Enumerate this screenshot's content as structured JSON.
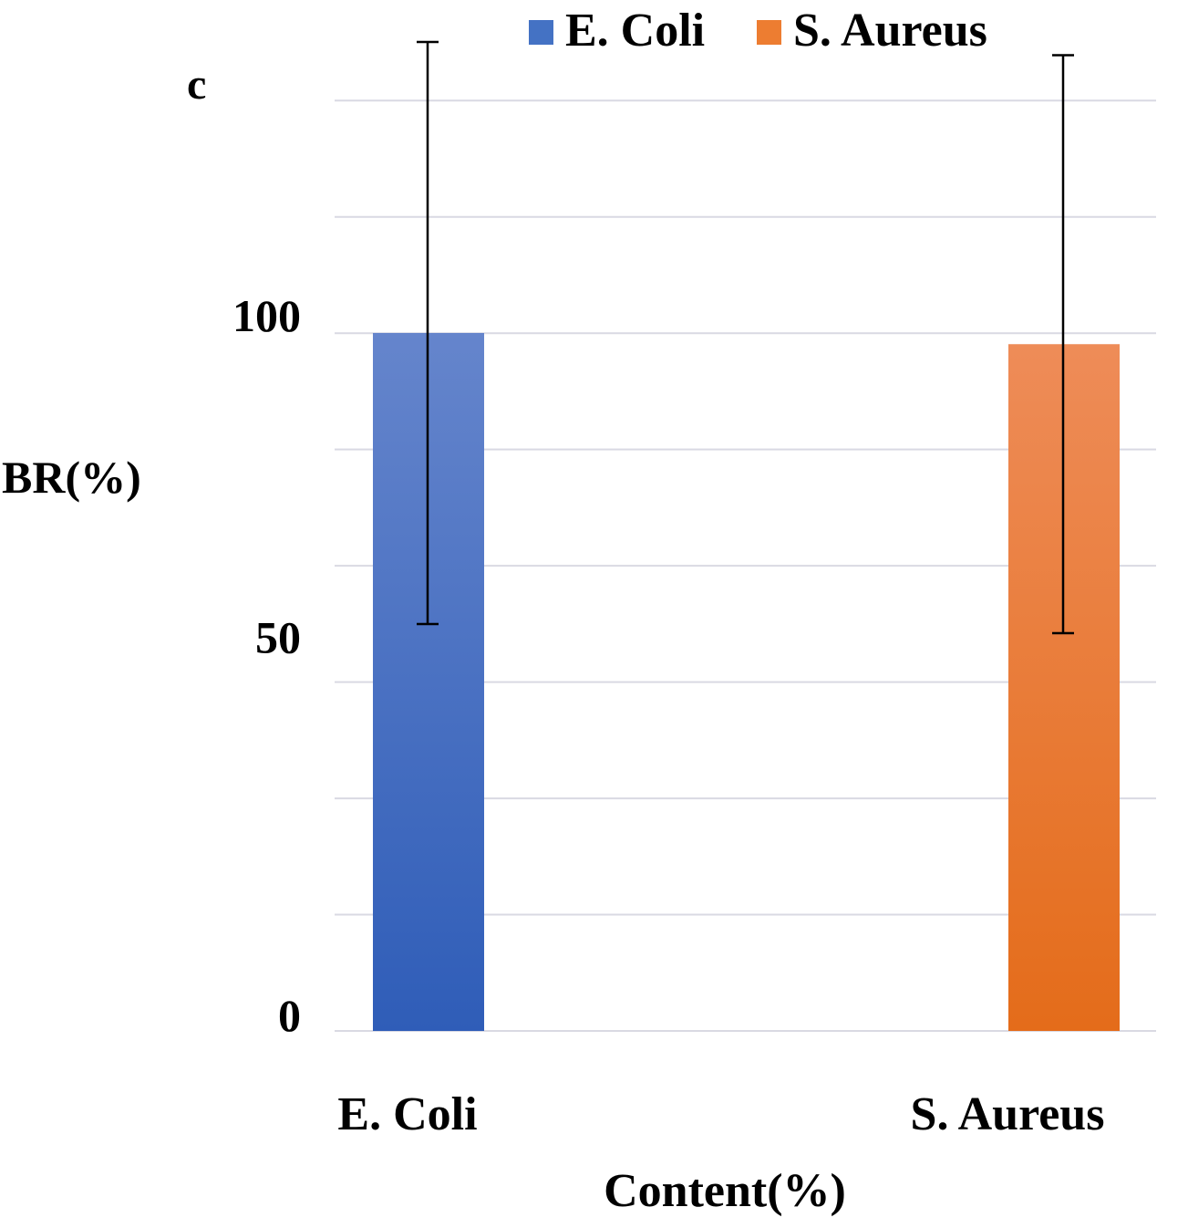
{
  "chart_data": {
    "type": "bar",
    "panel_label": "c",
    "categories": [
      "E. Coli",
      "S. Aureus"
    ],
    "series": [
      {
        "name": "E. Coli",
        "color": "#4472C4",
        "values": [
          100,
          null
        ],
        "error": [
          41.7,
          null
        ]
      },
      {
        "name": "S. Aureus",
        "color": "#ED7D31",
        "values": [
          null,
          98.4
        ],
        "error": [
          null,
          41.4
        ]
      }
    ],
    "xlabel": "Content(%)",
    "ylabel": "BR(%)",
    "ylim": [
      0,
      133.3
    ],
    "yticks": [
      0,
      50,
      100
    ],
    "ytick_labels": [
      "0",
      "50",
      "100"
    ],
    "grid": true,
    "legend": "top"
  }
}
